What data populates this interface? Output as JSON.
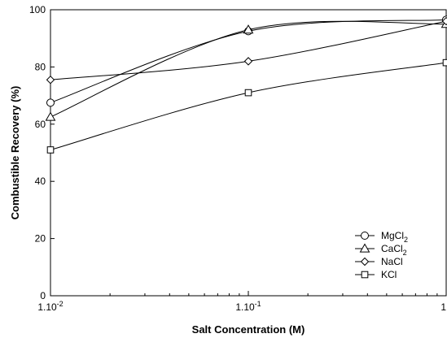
{
  "chart_data": {
    "type": "line",
    "title": "",
    "xlabel": "Salt Concentration (M)",
    "ylabel": "Combustible Recovery (%)",
    "xscale": "log",
    "xlim": [
      0.01,
      1
    ],
    "ylim": [
      0,
      100
    ],
    "grid": false,
    "legend_position": "bottom-right",
    "x_ticks": [
      {
        "value": 0.01,
        "base": "1.10",
        "exp": "-2"
      },
      {
        "value": 0.1,
        "base": "1.10",
        "exp": "-1"
      },
      {
        "value": 1,
        "base": "1",
        "exp": ""
      }
    ],
    "y_ticks": [
      0,
      20,
      40,
      60,
      80,
      100
    ],
    "x": [
      0.01,
      0.1,
      1
    ],
    "series": [
      {
        "name": "MgCl",
        "sub": "2",
        "marker": "circle",
        "values": [
          67.5,
          92.5,
          96.5
        ]
      },
      {
        "name": "CaCl",
        "sub": "2",
        "marker": "triangle",
        "values": [
          62.5,
          93,
          95
        ]
      },
      {
        "name": "NaCl",
        "sub": "",
        "marker": "diamond",
        "values": [
          75.5,
          82,
          96
        ]
      },
      {
        "name": "KCl",
        "sub": "",
        "marker": "square",
        "values": [
          51,
          71,
          81.5
        ]
      }
    ]
  }
}
